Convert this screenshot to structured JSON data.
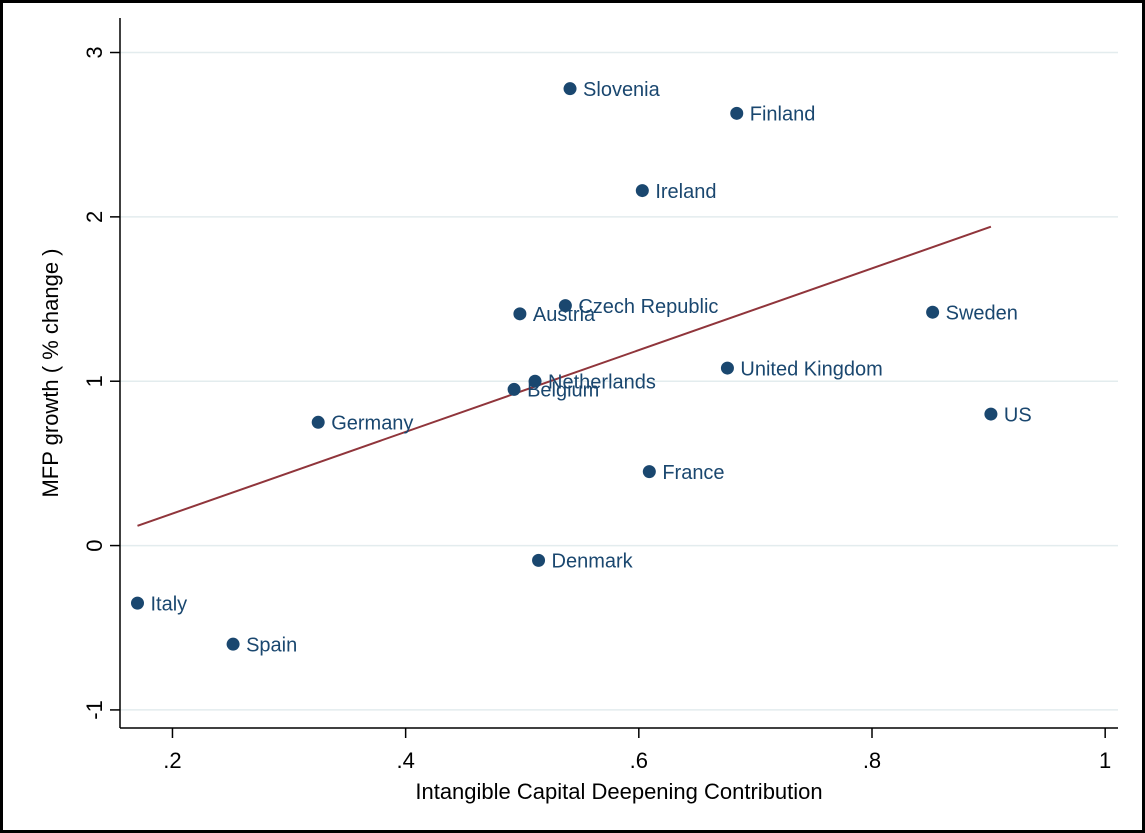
{
  "chart_data": {
    "type": "scatter",
    "x_label": "Intangible Capital Deepening Contribution",
    "y_label": "MFP growth ( % change )",
    "labels": [
      "Slovenia",
      "Finland",
      "Ireland",
      "Czech Republic",
      "Austria",
      "Sweden",
      "United Kingdom",
      "Netherlands",
      "Belgium",
      "Germany",
      "US",
      "France",
      "Denmark",
      "Italy",
      "Spain"
    ],
    "x": [
      0.541,
      0.684,
      0.603,
      0.537,
      0.498,
      0.852,
      0.676,
      0.511,
      0.493,
      0.325,
      0.902,
      0.609,
      0.514,
      0.17,
      0.252
    ],
    "values": [
      2.78,
      2.63,
      2.16,
      1.46,
      1.41,
      1.42,
      1.08,
      1.0,
      0.95,
      0.75,
      0.8,
      0.45,
      -0.09,
      -0.35,
      -0.6
    ],
    "color": "#1a476f",
    "fit_line": {
      "x": [
        0.17,
        0.902
      ],
      "y": [
        0.12,
        1.94
      ],
      "color": "#90353b"
    },
    "xlim": [
      0.155,
      1.011
    ],
    "ylim": [
      -1.11,
      3.21
    ],
    "xticks": [
      {
        "value": 0.2,
        "label": ".2"
      },
      {
        "value": 0.4,
        "label": ".4"
      },
      {
        "value": 0.6,
        "label": ".6"
      },
      {
        "value": 0.8,
        "label": ".8"
      },
      1
    ],
    "yticks": [
      -1,
      0,
      1,
      2,
      3
    ],
    "grid": true
  }
}
